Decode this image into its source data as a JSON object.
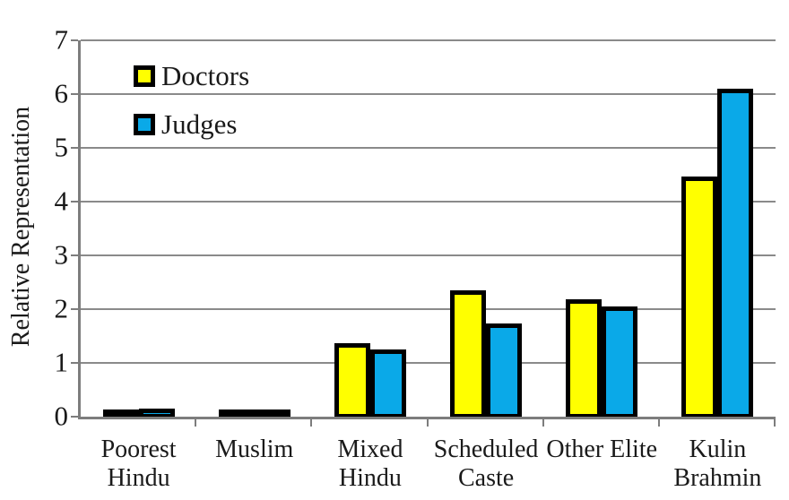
{
  "chart_data": {
    "type": "bar",
    "title": "",
    "xlabel": "",
    "ylabel": "Relative Representation",
    "ylim": [
      0,
      7
    ],
    "yticks": [
      0,
      1,
      2,
      3,
      4,
      5,
      6,
      7
    ],
    "grid": "horizontal",
    "legend_position": "top-left-inside",
    "categories": [
      "Poorest Hindu",
      "Muslim",
      "Mixed Hindu",
      "Scheduled Caste",
      "Other Elite",
      "Kulin Brahmin"
    ],
    "category_label_lines": [
      [
        "Poorest",
        "Hindu"
      ],
      [
        "Muslim"
      ],
      [
        "Mixed",
        "Hindu"
      ],
      [
        "Scheduled",
        "Caste"
      ],
      [
        "Other Elite"
      ],
      [
        "Kulin",
        "Brahmin"
      ]
    ],
    "series": [
      {
        "name": "Doctors",
        "color": "#FFFF00",
        "values": [
          0.1,
          0.14,
          1.4,
          2.38,
          2.22,
          4.5
        ]
      },
      {
        "name": "Judges",
        "color": "#0AA9E8",
        "values": [
          0.18,
          0.13,
          1.28,
          1.77,
          2.08,
          6.13
        ]
      }
    ],
    "colors": {
      "bar_border": "#000000",
      "gridline": "#8a8a8a",
      "axis": "#7d7d7d",
      "text": "#1a1a1a",
      "background": "#ffffff"
    }
  }
}
